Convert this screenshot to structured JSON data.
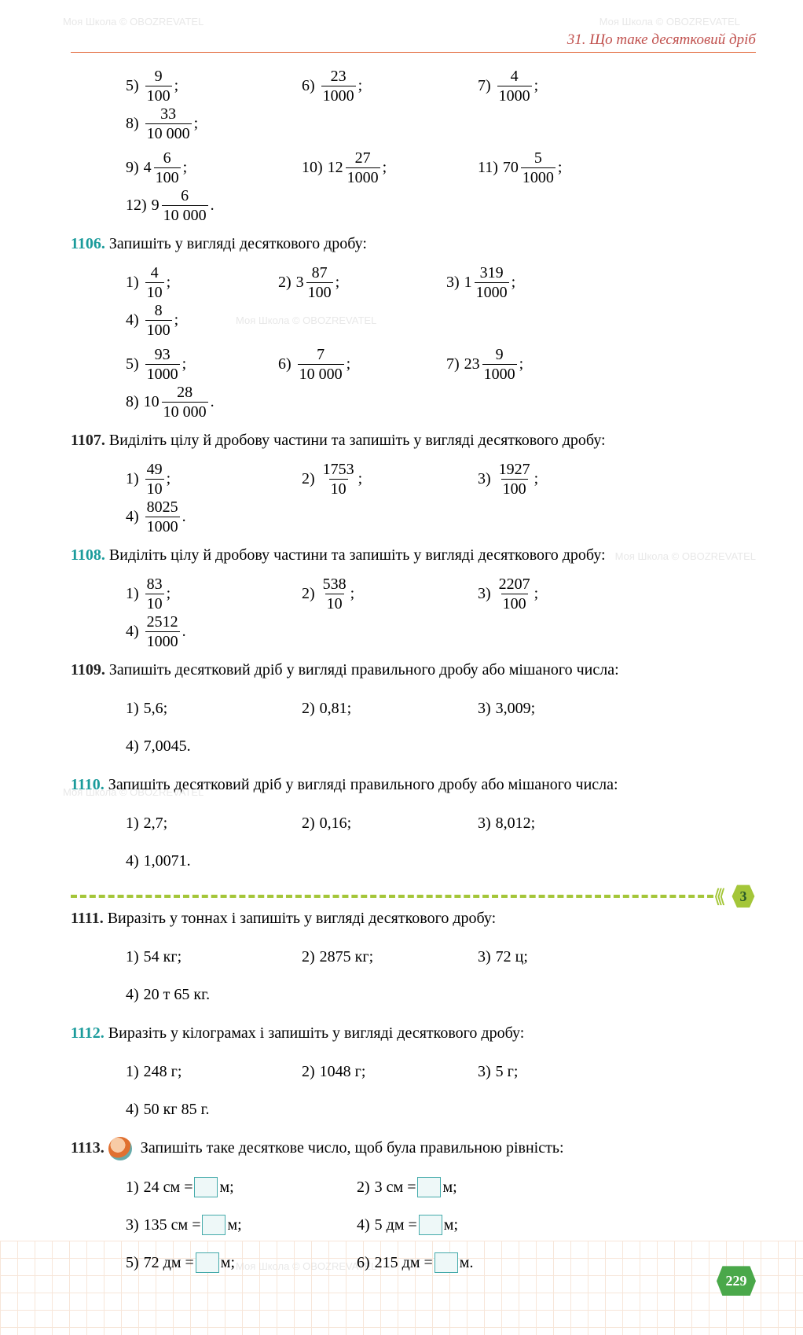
{
  "header": "31. Що таке десятковий дріб",
  "page_number": "229",
  "watermark_text": "Моя Школа © OBOZREVATEL",
  "level_badge": "3",
  "colors": {
    "teal": "#1a9b9b",
    "orange_rule": "#e06030",
    "green": "#a4c639",
    "page_badge": "#4aa84a",
    "box_border": "#44aaaa"
  },
  "cont": {
    "rowA": [
      {
        "lbl": "5)",
        "w": "",
        "n": "9",
        "d": "100",
        "t": ";"
      },
      {
        "lbl": "6)",
        "w": "",
        "n": "23",
        "d": "1000",
        "t": ";"
      },
      {
        "lbl": "7)",
        "w": "",
        "n": "4",
        "d": "1000",
        "t": ";"
      },
      {
        "lbl": "8)",
        "w": "",
        "n": "33",
        "d": "10 000",
        "t": ";"
      }
    ],
    "rowB": [
      {
        "lbl": "9)",
        "w": "4",
        "n": "6",
        "d": "100",
        "t": ";"
      },
      {
        "lbl": "10)",
        "w": "12",
        "n": "27",
        "d": "1000",
        "t": ";"
      },
      {
        "lbl": "11)",
        "w": "70",
        "n": "5",
        "d": "1000",
        "t": ";"
      },
      {
        "lbl": "12)",
        "w": "9",
        "n": "6",
        "d": "10 000",
        "t": "."
      }
    ]
  },
  "t1106": {
    "num": "1106.",
    "text": "Запишіть у вигляді десяткового дробу:",
    "rowA": [
      {
        "lbl": "1)",
        "w": "",
        "n": "4",
        "d": "10",
        "t": ";"
      },
      {
        "lbl": "2)",
        "w": "3",
        "n": "87",
        "d": "100",
        "t": ";"
      },
      {
        "lbl": "3)",
        "w": "1",
        "n": "319",
        "d": "1000",
        "t": ";"
      },
      {
        "lbl": "4)",
        "w": "",
        "n": "8",
        "d": "100",
        "t": ";"
      }
    ],
    "rowB": [
      {
        "lbl": "5)",
        "w": "",
        "n": "93",
        "d": "1000",
        "t": ";"
      },
      {
        "lbl": "6)",
        "w": "",
        "n": "7",
        "d": "10 000",
        "t": ";"
      },
      {
        "lbl": "7)",
        "w": "23",
        "n": "9",
        "d": "1000",
        "t": ";"
      },
      {
        "lbl": "8)",
        "w": "10",
        "n": "28",
        "d": "10 000",
        "t": "."
      }
    ]
  },
  "t1107": {
    "num": "1107.",
    "text": "Виділіть цілу й дробову частини та запишіть у вигляді десяткового дробу:",
    "row": [
      {
        "lbl": "1)",
        "n": "49",
        "d": "10",
        "t": ";"
      },
      {
        "lbl": "2)",
        "n": "1753",
        "d": "10",
        "t": ";"
      },
      {
        "lbl": "3)",
        "n": "1927",
        "d": "100",
        "t": ";"
      },
      {
        "lbl": "4)",
        "n": "8025",
        "d": "1000",
        "t": "."
      }
    ]
  },
  "t1108": {
    "num": "1108.",
    "text": "Виділіть цілу й дробову частини та запишіть у вигляді десяткового дробу:",
    "row": [
      {
        "lbl": "1)",
        "n": "83",
        "d": "10",
        "t": ";"
      },
      {
        "lbl": "2)",
        "n": "538",
        "d": "10",
        "t": ";"
      },
      {
        "lbl": "3)",
        "n": "2207",
        "d": "100",
        "t": ";"
      },
      {
        "lbl": "4)",
        "n": "2512",
        "d": "1000",
        "t": "."
      }
    ]
  },
  "t1109": {
    "num": "1109.",
    "text": "Запишіть десятковий дріб у вигляді правильного дробу або мішаного числа:",
    "row": [
      {
        "lbl": "1)",
        "v": "5,6;"
      },
      {
        "lbl": "2)",
        "v": "0,81;"
      },
      {
        "lbl": "3)",
        "v": "3,009;"
      },
      {
        "lbl": "4)",
        "v": "7,0045."
      }
    ]
  },
  "t1110": {
    "num": "1110.",
    "text": "Запишіть десятковий дріб у вигляді правильного дробу або мішаного числа:",
    "row": [
      {
        "lbl": "1)",
        "v": "2,7;"
      },
      {
        "lbl": "2)",
        "v": "0,16;"
      },
      {
        "lbl": "3)",
        "v": "8,012;"
      },
      {
        "lbl": "4)",
        "v": "1,0071."
      }
    ]
  },
  "t1111": {
    "num": "1111.",
    "text": "Виразіть у тоннах і запишіть у вигляді десяткового дробу:",
    "row": [
      {
        "lbl": "1)",
        "v": "54 кг;"
      },
      {
        "lbl": "2)",
        "v": "2875 кг;"
      },
      {
        "lbl": "3)",
        "v": "72 ц;"
      },
      {
        "lbl": "4)",
        "v": "20 т 65 кг."
      }
    ]
  },
  "t1112": {
    "num": "1112.",
    "text": "Виразіть у кілограмах і запишіть у вигляді десяткового дробу:",
    "row": [
      {
        "lbl": "1)",
        "v": "248 г;"
      },
      {
        "lbl": "2)",
        "v": "1048 г;"
      },
      {
        "lbl": "3)",
        "v": "5 г;"
      },
      {
        "lbl": "4)",
        "v": "50 кг 85 г."
      }
    ]
  },
  "t1113": {
    "num": "1113.",
    "text": "Запишіть таке десяткове число, щоб була правильною рівність:",
    "row": [
      {
        "lbl": "1)",
        "pre": "24 см =",
        "post": " м;"
      },
      {
        "lbl": "2)",
        "pre": "3 см =",
        "post": " м;"
      },
      {
        "lbl": "3)",
        "pre": "135 см =",
        "post": " м;"
      },
      {
        "lbl": "4)",
        "pre": "5 дм =",
        "post": " м;"
      },
      {
        "lbl": "5)",
        "pre": "72 дм =",
        "post": " м;"
      },
      {
        "lbl": "6)",
        "pre": "215 дм =",
        "post": " м."
      }
    ]
  }
}
